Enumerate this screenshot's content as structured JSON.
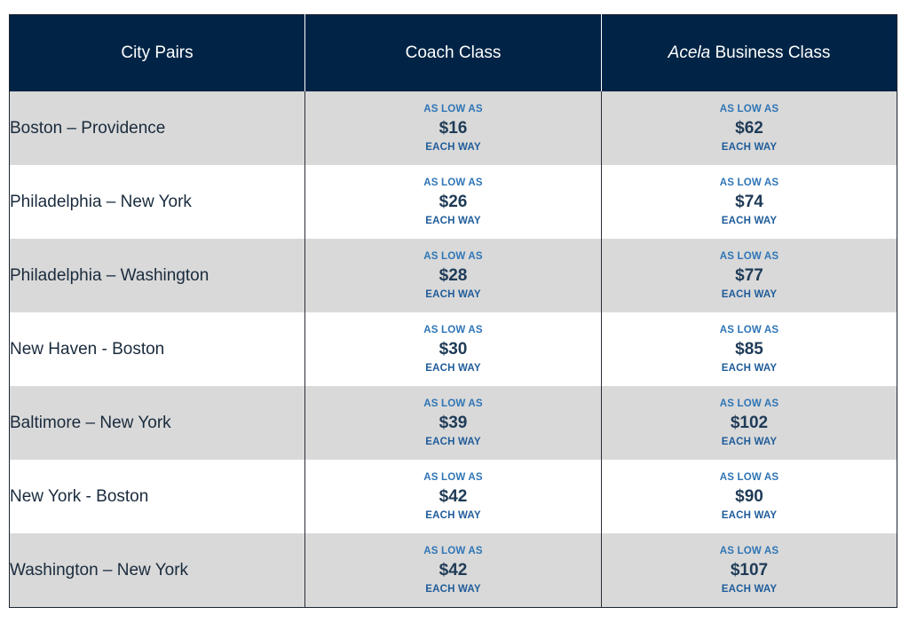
{
  "header": {
    "city_pairs": "City Pairs",
    "coach": "Coach Class",
    "acela_italic": "Acela",
    "acela_rest": " Business Class"
  },
  "labels": {
    "as_low_as": "AS LOW AS",
    "each_way": "EACH WAY"
  },
  "rows": [
    {
      "pair": "Boston – Providence",
      "coach": "$16",
      "acela": "$62"
    },
    {
      "pair": "Philadelphia – New York",
      "coach": "$26",
      "acela": "$74"
    },
    {
      "pair": "Philadelphia – Washington",
      "coach": "$28",
      "acela": "$77"
    },
    {
      "pair": "New Haven - Boston",
      "coach": "$30",
      "acela": "$85"
    },
    {
      "pair": "Baltimore – New York",
      "coach": "$39",
      "acela": "$102"
    },
    {
      "pair": "New York - Boston",
      "coach": "$42",
      "acela": "$90"
    },
    {
      "pair": "Washington – New York",
      "coach": "$42",
      "acela": "$107"
    }
  ],
  "colors": {
    "header_bg": "#012446",
    "shaded_row": "#d9d9d9",
    "accent_blue": "#2e75b6"
  }
}
